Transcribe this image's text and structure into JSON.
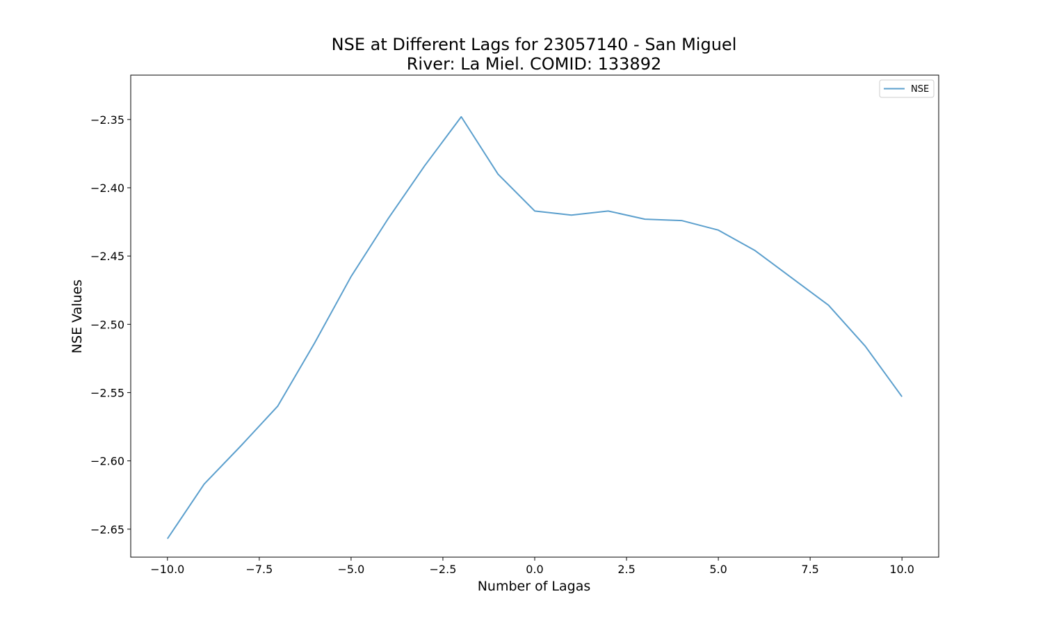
{
  "chart_data": {
    "type": "line",
    "title_lines": [
      "NSE at Different Lags for 23057140 - San Miguel",
      "River: La Miel. COMID: 133892"
    ],
    "xlabel": "Number of Lagas",
    "ylabel": "NSE Values",
    "xlim": [
      -11,
      11
    ],
    "ylim": [
      -2.6705,
      -2.3175
    ],
    "x_ticks": [
      -10.0,
      -7.5,
      -5.0,
      -2.5,
      0.0,
      2.5,
      5.0,
      7.5,
      10.0
    ],
    "x_tick_labels": [
      "−10.0",
      "−7.5",
      "−5.0",
      "−2.5",
      "0.0",
      "2.5",
      "5.0",
      "7.5",
      "10.0"
    ],
    "y_ticks": [
      -2.65,
      -2.6,
      -2.55,
      -2.5,
      -2.45,
      -2.4,
      -2.35
    ],
    "y_tick_labels": [
      "−2.65",
      "−2.60",
      "−2.55",
      "−2.50",
      "−2.45",
      "−2.40",
      "−2.35"
    ],
    "grid": false,
    "legend_position": "upper right",
    "series": [
      {
        "name": "NSE",
        "color": "#5b9fcd",
        "x": [
          -10,
          -9,
          -8,
          -7,
          -6,
          -5,
          -4,
          -3,
          -2,
          -1,
          0,
          1,
          2,
          3,
          4,
          5,
          6,
          7,
          8,
          9,
          10
        ],
        "y": [
          -2.657,
          -2.617,
          -2.589,
          -2.56,
          -2.514,
          -2.465,
          -2.423,
          -2.384,
          -2.348,
          -2.39,
          -2.417,
          -2.42,
          -2.417,
          -2.423,
          -2.424,
          -2.431,
          -2.446,
          -2.466,
          -2.486,
          -2.516,
          -2.553
        ]
      }
    ]
  }
}
